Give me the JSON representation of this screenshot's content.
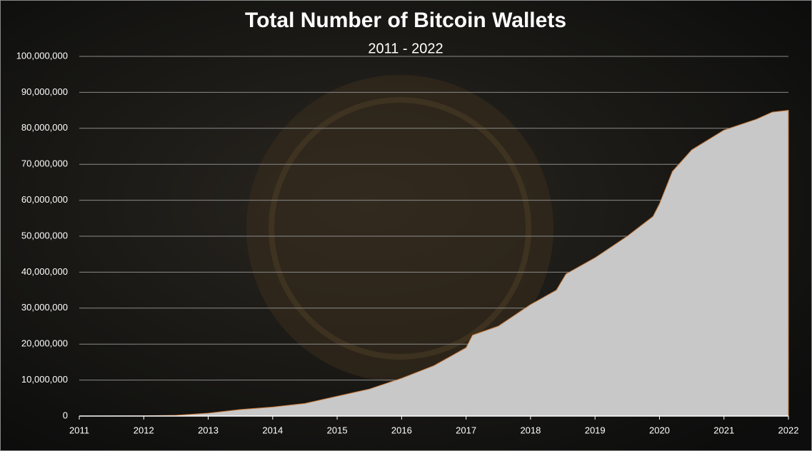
{
  "chart_data": {
    "type": "area",
    "title": "Total Number of Bitcoin Wallets",
    "subtitle": "2011 - 2022",
    "x": [
      2011,
      2012,
      2012.5,
      2013,
      2013.5,
      2014,
      2014.5,
      2015,
      2015.5,
      2016,
      2016.5,
      2017,
      2017.1,
      2017.5,
      2018,
      2018.4,
      2018.55,
      2019,
      2019.5,
      2019.9,
      2020,
      2020.2,
      2020.5,
      2021,
      2021.5,
      2021.75,
      2022
    ],
    "values": [
      0,
      50000,
      200000,
      800000,
      1800000,
      2500000,
      3500000,
      5500000,
      7500000,
      10500000,
      14000000,
      19000000,
      22500000,
      25000000,
      31000000,
      35000000,
      39500000,
      44000000,
      50000000,
      55500000,
      59000000,
      68000000,
      74000000,
      79500000,
      82500000,
      84500000,
      85000000
    ],
    "color": "#c8c8c8",
    "xlim": [
      2011,
      2022
    ],
    "xticks": [
      2011,
      2012,
      2013,
      2014,
      2015,
      2016,
      2017,
      2018,
      2019,
      2020,
      2021,
      2022
    ],
    "ylim": [
      0,
      100000000
    ],
    "yticks": [
      0,
      {
        "value": 10000000,
        "label": "10,000,000"
      },
      {
        "value": 20000000,
        "label": "20,000,000"
      },
      {
        "value": 30000000,
        "label": "30,000,000"
      },
      {
        "value": 40000000,
        "label": "40,000,000"
      },
      {
        "value": 50000000,
        "label": "50,000,000"
      },
      {
        "value": 60000000,
        "label": "60,000,000"
      },
      {
        "value": 70000000,
        "label": "70,000,000"
      },
      {
        "value": 80000000,
        "label": "80,000,000"
      },
      {
        "value": 90000000,
        "label": "90,000,000"
      },
      {
        "value": 100000000,
        "label": "100,000,000"
      }
    ],
    "grid": true
  }
}
